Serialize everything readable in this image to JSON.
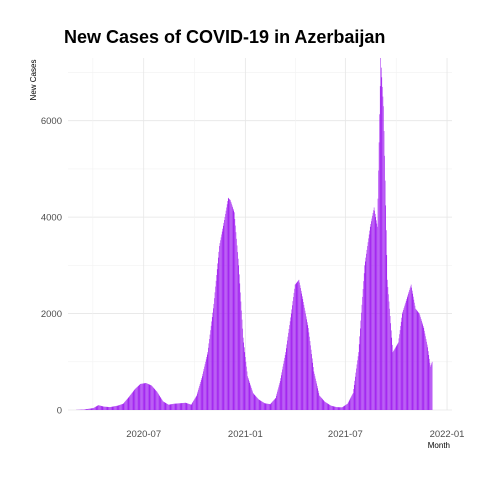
{
  "chart_data": {
    "type": "bar",
    "title": "New Cases of COVID-19 in Azerbaijan",
    "xlabel": "Month",
    "ylabel": "New Cases",
    "x_ticks": [
      "2020-07",
      "2021-01",
      "2021-07",
      "2022-01"
    ],
    "y_ticks": [
      0,
      2000,
      4000,
      6000
    ],
    "xlim": [
      "2020-02-15",
      "2022-01-10"
    ],
    "ylim": [
      0,
      7300
    ],
    "grid": true,
    "bar_color": "#a020f0",
    "series": [
      {
        "points": [
          [
            "2020-03-01",
            3
          ],
          [
            "2020-03-15",
            10
          ],
          [
            "2020-04-01",
            40
          ],
          [
            "2020-04-10",
            100
          ],
          [
            "2020-04-20",
            70
          ],
          [
            "2020-05-01",
            60
          ],
          [
            "2020-05-15",
            90
          ],
          [
            "2020-05-25",
            130
          ],
          [
            "2020-06-05",
            280
          ],
          [
            "2020-06-15",
            430
          ],
          [
            "2020-06-25",
            540
          ],
          [
            "2020-07-05",
            560
          ],
          [
            "2020-07-15",
            510
          ],
          [
            "2020-07-25",
            380
          ],
          [
            "2020-08-05",
            180
          ],
          [
            "2020-08-15",
            110
          ],
          [
            "2020-08-25",
            130
          ],
          [
            "2020-09-05",
            140
          ],
          [
            "2020-09-15",
            150
          ],
          [
            "2020-09-25",
            110
          ],
          [
            "2020-10-05",
            300
          ],
          [
            "2020-10-15",
            700
          ],
          [
            "2020-10-25",
            1200
          ],
          [
            "2020-11-05",
            2200
          ],
          [
            "2020-11-15",
            3400
          ],
          [
            "2020-11-25",
            4000
          ],
          [
            "2020-12-01",
            4400
          ],
          [
            "2020-12-05",
            4350
          ],
          [
            "2020-12-12",
            4100
          ],
          [
            "2020-12-20",
            3000
          ],
          [
            "2020-12-28",
            1500
          ],
          [
            "2021-01-05",
            700
          ],
          [
            "2021-01-15",
            350
          ],
          [
            "2021-01-25",
            220
          ],
          [
            "2021-02-05",
            140
          ],
          [
            "2021-02-15",
            120
          ],
          [
            "2021-02-25",
            250
          ],
          [
            "2021-03-05",
            600
          ],
          [
            "2021-03-15",
            1200
          ],
          [
            "2021-03-25",
            2000
          ],
          [
            "2021-04-01",
            2600
          ],
          [
            "2021-04-08",
            2700
          ],
          [
            "2021-04-15",
            2300
          ],
          [
            "2021-04-25",
            1700
          ],
          [
            "2021-05-05",
            800
          ],
          [
            "2021-05-15",
            300
          ],
          [
            "2021-05-25",
            170
          ],
          [
            "2021-06-05",
            90
          ],
          [
            "2021-06-15",
            60
          ],
          [
            "2021-06-25",
            55
          ],
          [
            "2021-07-05",
            130
          ],
          [
            "2021-07-15",
            350
          ],
          [
            "2021-07-25",
            1200
          ],
          [
            "2021-08-05",
            3000
          ],
          [
            "2021-08-15",
            3800
          ],
          [
            "2021-08-22",
            4200
          ],
          [
            "2021-08-28",
            3800
          ],
          [
            "2021-09-03",
            7300
          ],
          [
            "2021-09-08",
            6300
          ],
          [
            "2021-09-15",
            2700
          ],
          [
            "2021-09-25",
            1200
          ],
          [
            "2021-10-05",
            1400
          ],
          [
            "2021-10-12",
            2000
          ],
          [
            "2021-10-20",
            2300
          ],
          [
            "2021-10-28",
            2600
          ],
          [
            "2021-11-05",
            2100
          ],
          [
            "2021-11-12",
            2000
          ],
          [
            "2021-11-20",
            1700
          ],
          [
            "2021-11-27",
            1300
          ],
          [
            "2021-12-02",
            900
          ],
          [
            "2021-12-05",
            1000
          ]
        ]
      }
    ]
  }
}
